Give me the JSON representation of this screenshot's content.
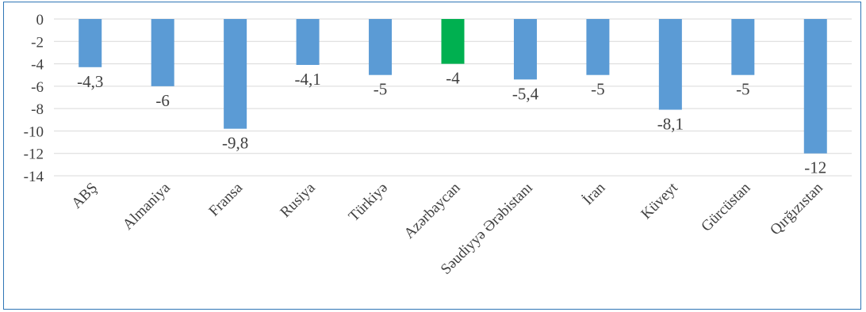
{
  "chart_data": {
    "type": "bar",
    "categories": [
      "ABŞ",
      "Almaniya",
      "Fransa",
      "Rusiya",
      "Türkiyə",
      "Azərbaycan",
      "Səudiyyə Ərəbistanı",
      "İran",
      "Küveyt",
      "Gürcüstan",
      "Qırğızıstan"
    ],
    "values": [
      -4.3,
      -6,
      -9.8,
      -4.1,
      -5,
      -4,
      -5.4,
      -5,
      -8.1,
      -5,
      -12
    ],
    "value_labels": [
      "-4,3",
      "-6",
      "-9,8",
      "-4,1",
      "-5",
      "-4",
      "-5,4",
      "-5",
      "-8,1",
      "-5",
      "-12"
    ],
    "ylim": [
      -14,
      0
    ],
    "yticks": [
      0,
      -2,
      -4,
      -6,
      -8,
      -10,
      -12,
      -14
    ],
    "grid": true,
    "colors": {
      "default": "#5b9bd5",
      "highlight": "#00b050",
      "highlight_index": 5,
      "grid": "#d9d9d9",
      "frame": "#2e75b6"
    }
  }
}
